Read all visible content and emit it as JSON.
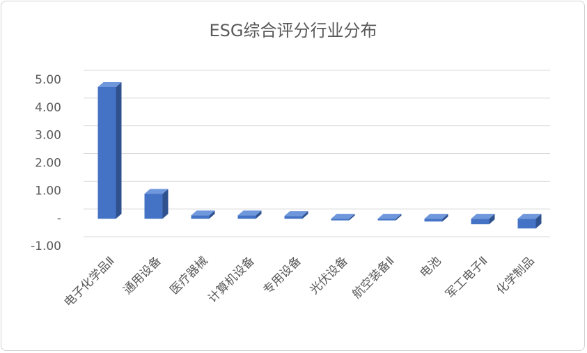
{
  "chart_data": {
    "type": "bar",
    "title": "ESG综合评分行业分布",
    "categories": [
      "电子化学品Ⅱ",
      "通用设备",
      "医疗器械",
      "计算机设备",
      "专用设备",
      "光伏设备",
      "航空装备Ⅱ",
      "电池",
      "军工电子Ⅱ",
      "化学制品"
    ],
    "values": [
      4.75,
      0.9,
      0.12,
      0.12,
      0.1,
      -0.06,
      -0.06,
      -0.1,
      -0.2,
      -0.35
    ],
    "color": "#4472c4",
    "ylim": [
      -1,
      5
    ],
    "yticks": [
      {
        "value": -1,
        "label": "-1.00"
      },
      {
        "value": 0,
        "label": "-"
      },
      {
        "value": 1,
        "label": "1.00"
      },
      {
        "value": 2,
        "label": "2.00"
      },
      {
        "value": 3,
        "label": "3.00"
      },
      {
        "value": 4,
        "label": "4.00"
      },
      {
        "value": 5,
        "label": "5.00"
      }
    ],
    "grid": true
  }
}
